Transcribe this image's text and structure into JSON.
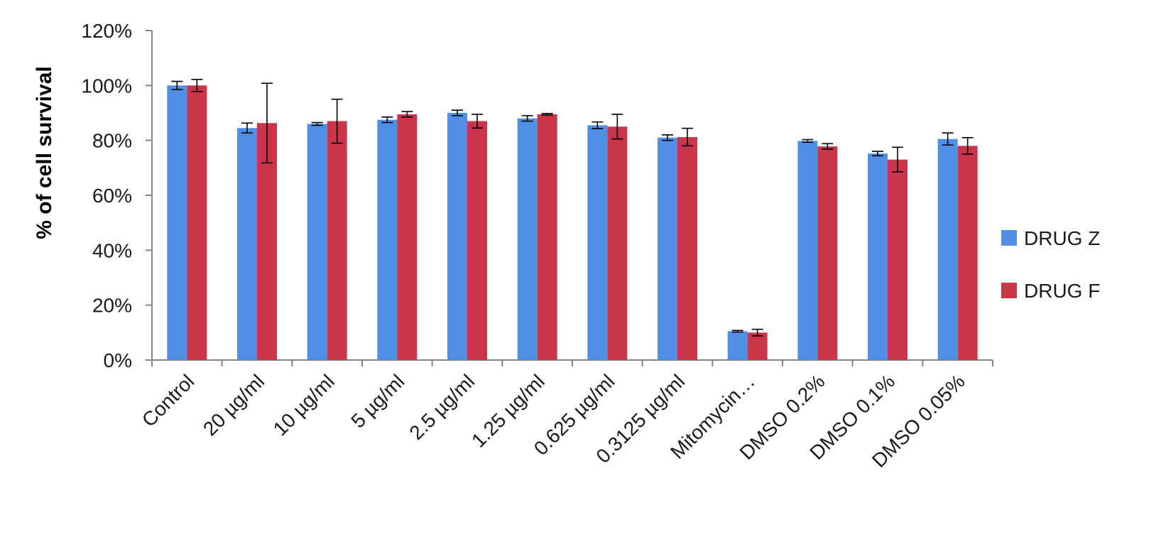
{
  "chart_data": {
    "type": "bar",
    "title": "",
    "xlabel": "",
    "ylabel": "% of cell survival",
    "ylim": [
      0,
      120
    ],
    "y_ticks": [
      "0%",
      "20%",
      "40%",
      "60%",
      "80%",
      "100%",
      "120%"
    ],
    "y_tick_values": [
      0,
      20,
      40,
      60,
      80,
      100,
      120
    ],
    "grid": false,
    "legend_position": "right",
    "categories": [
      "Control",
      "20 µg/ml",
      "10 µg/ml",
      "5 µg/ml",
      "2.5 µg/ml",
      "1.25 µg/ml",
      "0.625 µg/ml",
      "0.3125 µg/ml",
      "Mitomycin…",
      "DMSO 0.2%",
      "DMSO 0.1%",
      "DMSO 0.05%"
    ],
    "series": [
      {
        "name": "DRUG Z",
        "color": "#4f8fe8",
        "values": [
          100,
          84.5,
          86,
          87.5,
          90,
          88,
          85.5,
          81,
          10.5,
          79.8,
          75.2,
          80.5
        ],
        "errors": [
          1.5,
          1.8,
          0.5,
          1.0,
          1.0,
          1.0,
          1.2,
          1.0,
          0.3,
          0.5,
          0.8,
          2.2
        ]
      },
      {
        "name": "DRUG F",
        "color": "#c9364a",
        "values": [
          100,
          86.3,
          87,
          89.5,
          87,
          89.5,
          85,
          81.2,
          10,
          77.8,
          73,
          78
        ],
        "errors": [
          2.2,
          14.5,
          8.0,
          1.0,
          2.5,
          0.3,
          4.5,
          3.2,
          1.2,
          1.0,
          4.5,
          3.0
        ]
      }
    ]
  }
}
